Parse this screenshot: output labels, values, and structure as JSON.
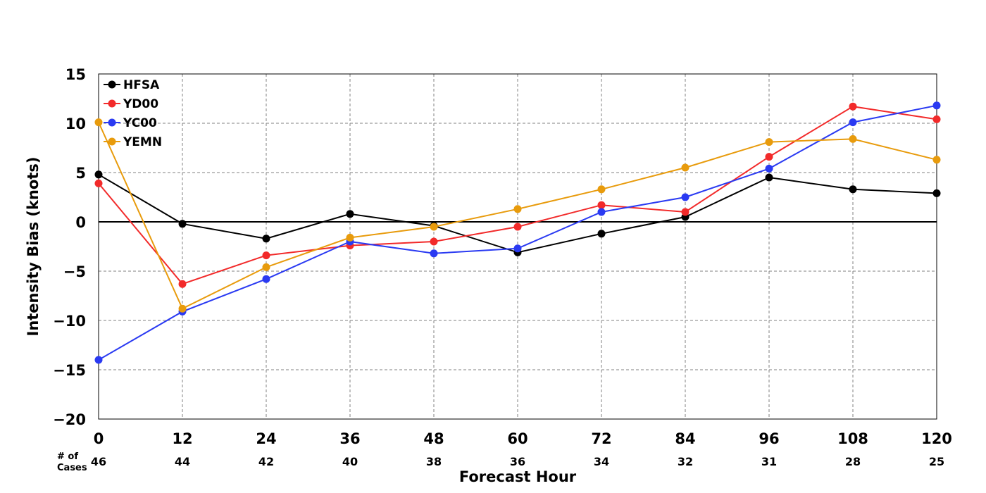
{
  "chart_data": {
    "type": "line",
    "xlabel": "Forecast Hour",
    "ylabel": "Intensity Bias (knots)",
    "x": [
      0,
      12,
      24,
      36,
      48,
      60,
      72,
      84,
      96,
      108,
      120
    ],
    "xlim": [
      0,
      120
    ],
    "ylim": [
      -20,
      15
    ],
    "yticks": [
      15,
      10,
      5,
      0,
      -5,
      -10,
      -15,
      -20
    ],
    "ytick_labels": [
      "15",
      "10",
      "5",
      "0",
      "−5",
      "−10",
      "−15",
      "−20"
    ],
    "xtick_labels": [
      "0",
      "12",
      "24",
      "36",
      "48",
      "60",
      "72",
      "84",
      "96",
      "108",
      "120"
    ],
    "grid": true,
    "zero_line": true,
    "legend_position": "top-left",
    "cases_label": "# of\nCases",
    "cases_label_lines": [
      "# of",
      "Cases"
    ],
    "cases": [
      "46",
      "44",
      "42",
      "40",
      "38",
      "36",
      "34",
      "32",
      "31",
      "28",
      "25"
    ],
    "series": [
      {
        "name": "HFSA",
        "color": "#000000",
        "values": [
          4.8,
          -0.2,
          -1.7,
          0.8,
          -0.4,
          -3.1,
          -1.2,
          0.5,
          4.5,
          3.3,
          2.9
        ]
      },
      {
        "name": "YD00",
        "color": "#f22a2a",
        "values": [
          3.9,
          -6.3,
          -3.4,
          -2.4,
          -2.0,
          -0.5,
          1.7,
          1.0,
          6.6,
          11.7,
          10.4
        ]
      },
      {
        "name": "YC00",
        "color": "#2a3af2",
        "values": [
          -14.0,
          -9.1,
          -5.8,
          -2.0,
          -3.2,
          -2.7,
          1.0,
          2.5,
          5.4,
          10.1,
          11.8
        ]
      },
      {
        "name": "YEMN",
        "color": "#e89b0c",
        "values": [
          10.1,
          -8.8,
          -4.6,
          -1.6,
          -0.5,
          1.3,
          3.3,
          5.5,
          8.1,
          8.4,
          6.3
        ]
      }
    ]
  }
}
